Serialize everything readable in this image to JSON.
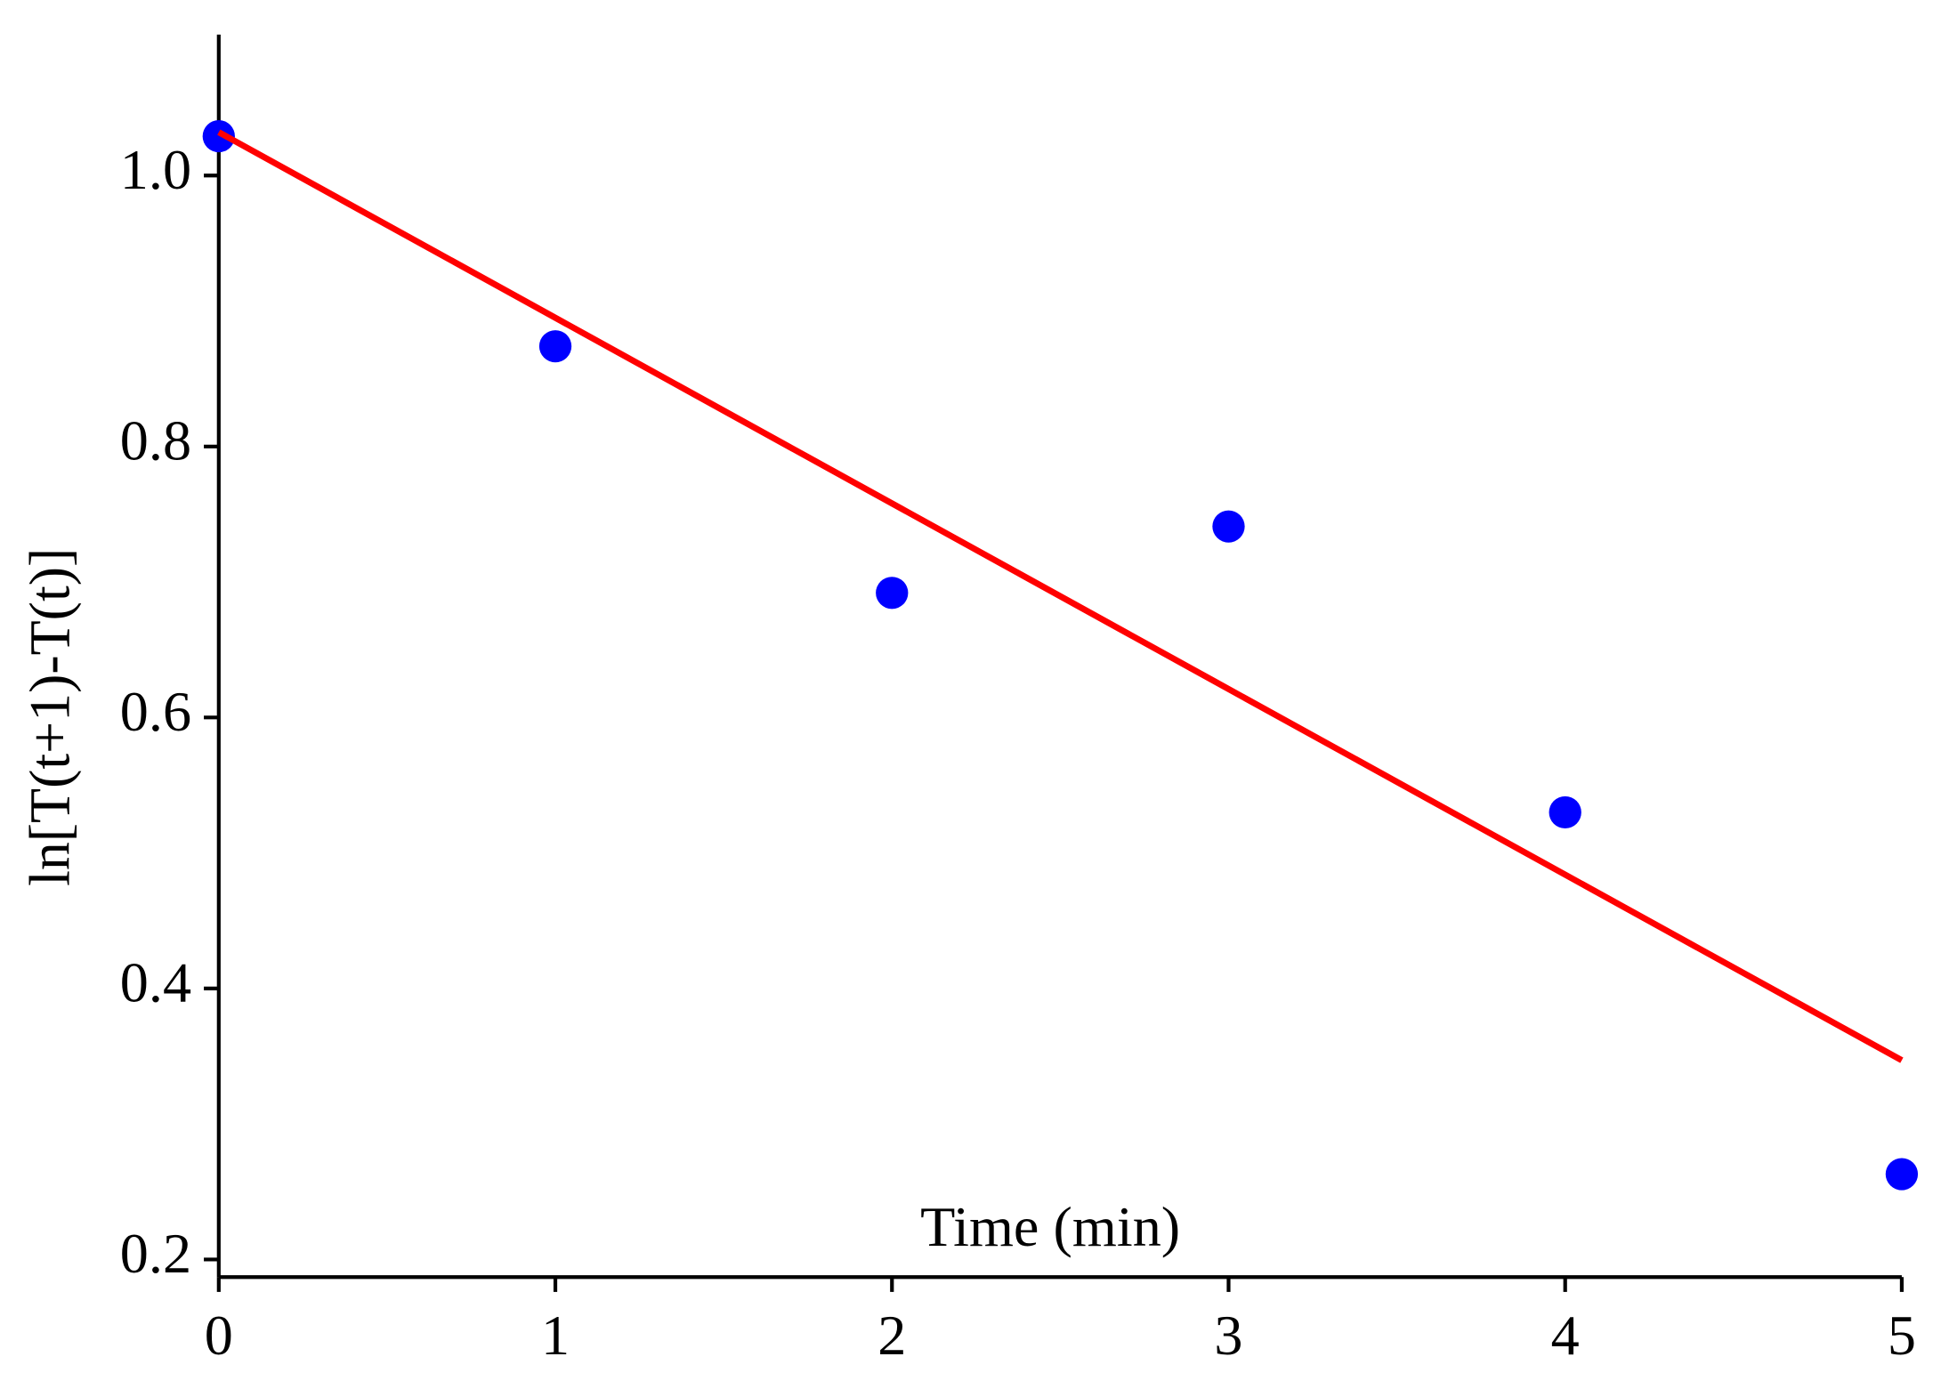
{
  "chart_data": {
    "type": "scatter",
    "xlabel": "Time (min)",
    "ylabel": "ln[T(t+1)-T(t)]",
    "series": [
      {
        "color": "#0000ff",
        "style": "markers",
        "x": [
          0,
          1,
          2,
          3,
          4,
          5
        ],
        "values": [
          1.029,
          0.874,
          0.692,
          0.741,
          0.53,
          0.263
        ]
      },
      {
        "color": "#ff0000",
        "style": "line",
        "x": [
          0,
          5
        ],
        "values": [
          1.032,
          0.347
        ]
      }
    ],
    "xlim": [
      0,
      5
    ],
    "xticks": [
      0,
      1,
      2,
      3,
      4,
      5
    ],
    "ylim": [
      0.187,
      1.104
    ],
    "yticks": [
      0.2,
      0.4,
      0.6,
      0.8,
      {
        "value": 1.0,
        "label": "1.0"
      }
    ],
    "grid": false
  }
}
